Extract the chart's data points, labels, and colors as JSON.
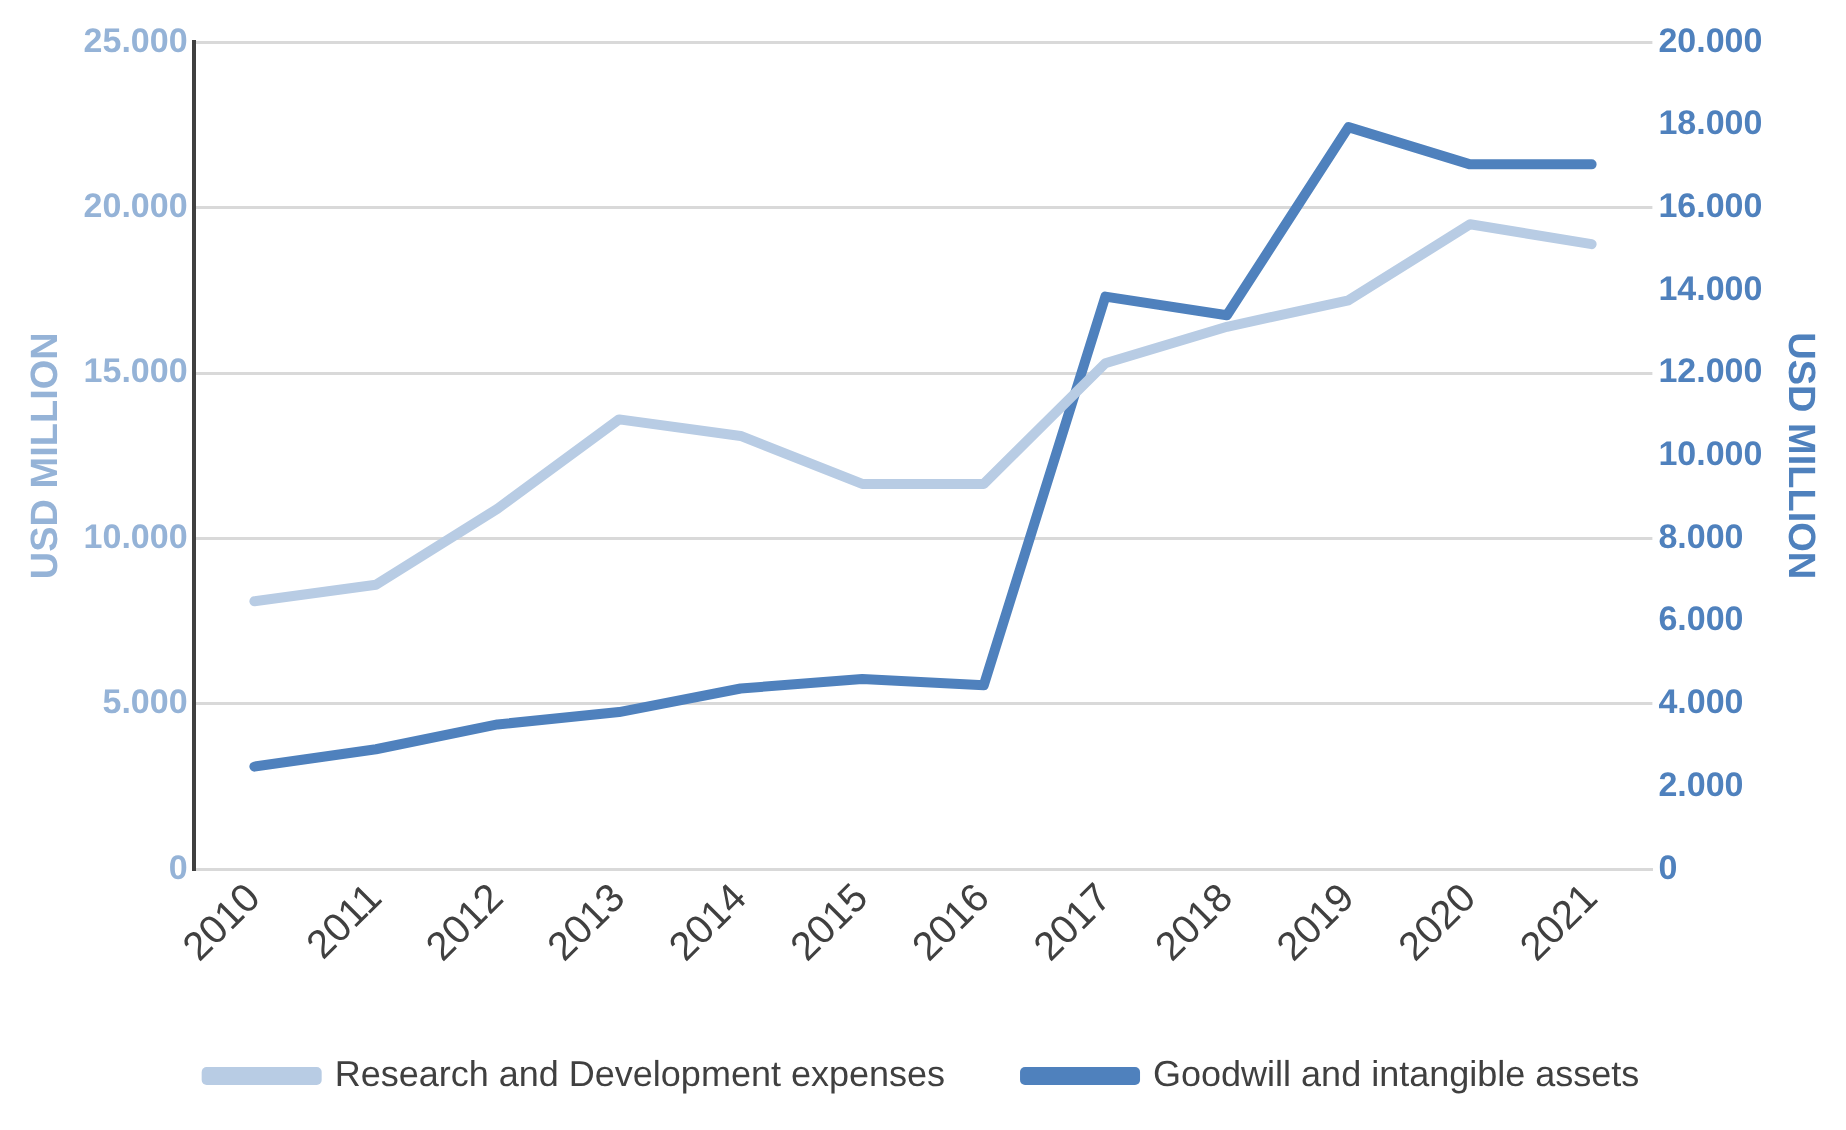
{
  "chart_data": {
    "type": "line",
    "categories": [
      "2010",
      "2011",
      "2012",
      "2013",
      "2014",
      "2015",
      "2016",
      "2017",
      "2018",
      "2019",
      "2020",
      "2021"
    ],
    "series": [
      {
        "name": "Research and Development expenses",
        "color": "#b8cce4",
        "values": [
          8100,
          8600,
          10900,
          13600,
          13100,
          11650,
          11650,
          15300,
          16400,
          17200,
          19500,
          18900
        ]
      },
      {
        "name": "Goodwill and intangible assets",
        "color": "#4f81bd",
        "axis": "y2",
        "values": [
          2480,
          2900,
          3500,
          3800,
          4370,
          4600,
          4450,
          13850,
          13400,
          17950,
          17050,
          17050
        ]
      }
    ],
    "ylabel": "USD MILLION",
    "y2label": "USD MILLION",
    "ylim": [
      0,
      25000
    ],
    "yticks": [
      0,
      {
        "value": 5000,
        "label": "5.000"
      },
      {
        "value": 10000,
        "label": "10.000"
      },
      {
        "value": 15000,
        "label": "15.000"
      },
      {
        "value": 20000,
        "label": "20.000"
      },
      {
        "value": 25000,
        "label": "25.000"
      }
    ],
    "y2lim": [
      0,
      20000
    ],
    "y2ticks": [
      0,
      {
        "value": 2000,
        "label": "2.000"
      },
      {
        "value": 4000,
        "label": "4.000"
      },
      {
        "value": 6000,
        "label": "6.000"
      },
      {
        "value": 8000,
        "label": "8.000"
      },
      {
        "value": 10000,
        "label": "10.000"
      },
      {
        "value": 12000,
        "label": "12.000"
      },
      {
        "value": 14000,
        "label": "14.000"
      },
      {
        "value": 16000,
        "label": "16.000"
      },
      {
        "value": 18000,
        "label": "18.000"
      },
      {
        "value": 20000,
        "label": "20.000"
      }
    ],
    "grid": "y",
    "legend": "bottom",
    "marker": "none",
    "line_style": "solid"
  }
}
